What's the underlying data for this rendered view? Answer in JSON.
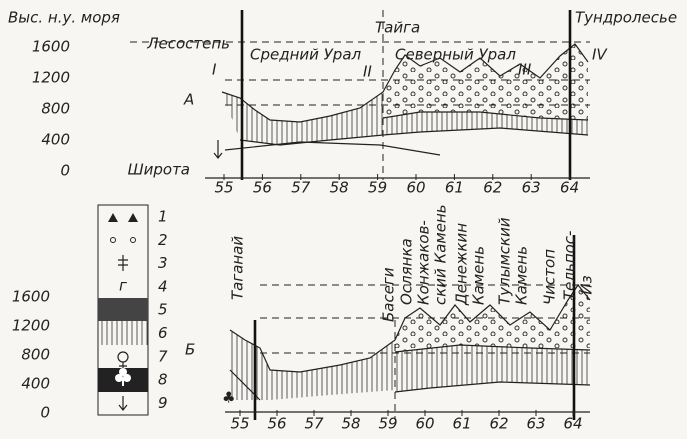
{
  "panel_a": {
    "label": "А",
    "y_axis_title": "Выс. н.у. моря",
    "x_axis_title": "Широта",
    "yticks": [
      1600,
      1200,
      800,
      400,
      0
    ],
    "xticks": [
      55,
      56,
      57,
      58,
      59,
      60,
      61,
      62,
      63,
      64
    ],
    "zones": [
      "Лесостепь",
      "Тайга",
      "Тундролесье"
    ],
    "regions": [
      "Средний Урал",
      "Северный Урал"
    ],
    "markers": [
      "I",
      "II",
      "III",
      "IV"
    ]
  },
  "legend": {
    "items": [
      1,
      2,
      3,
      4,
      5,
      6,
      7,
      8,
      9
    ],
    "symbol_4": "г"
  },
  "panel_b": {
    "label": "Б",
    "yticks": [
      1600,
      1200,
      800,
      400,
      0
    ],
    "xticks": [
      55,
      56,
      57,
      58,
      59,
      60,
      61,
      62,
      63,
      64
    ],
    "peaks": [
      [
        "Таганай"
      ],
      [
        "Басеги"
      ],
      [
        "Ослянка"
      ],
      [
        "Конжаков-",
        "ский Камень"
      ],
      [
        "Денежкин",
        "Камень"
      ],
      [
        "Тулымский",
        "Камень"
      ],
      [
        "Чистоп"
      ],
      [
        "Тельпос-",
        "-Из"
      ]
    ]
  }
}
